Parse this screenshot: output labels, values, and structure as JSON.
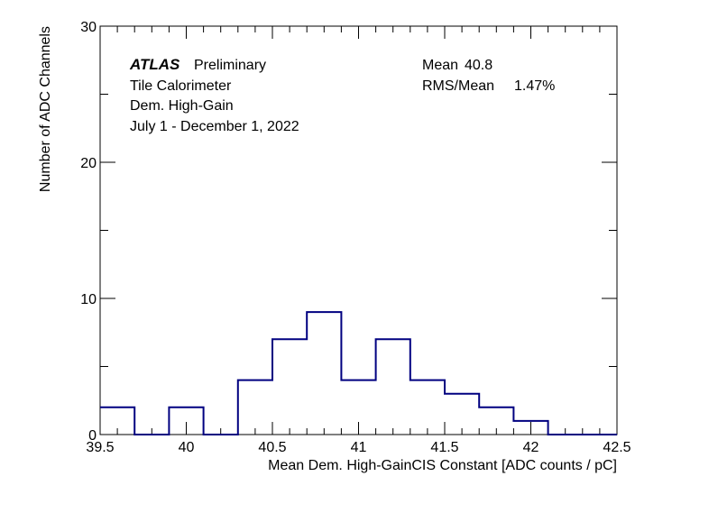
{
  "chart_data": {
    "type": "histogram",
    "xlabel": "Mean Dem. High-GainCIS Constant [ADC counts / pC]",
    "ylabel": "Number of ADC Channels",
    "xlim": [
      39.5,
      42.5
    ],
    "ylim": [
      0,
      30
    ],
    "x_ticks": [
      "39.5",
      "40",
      "40.5",
      "41",
      "41.5",
      "42",
      "42.5"
    ],
    "y_ticks": [
      "0",
      "10",
      "20",
      "30"
    ],
    "bin_edges": [
      39.5,
      39.7,
      39.9,
      40.1,
      40.3,
      40.5,
      40.7,
      40.9,
      41.1,
      41.3,
      41.5,
      41.7,
      41.9,
      42.1,
      42.3,
      42.5
    ],
    "counts": [
      2,
      0,
      2,
      0,
      4,
      7,
      9,
      4,
      7,
      4,
      3,
      2,
      1,
      0,
      0
    ],
    "line_color": "#000080",
    "annotations": {
      "experiment": "ATLAS",
      "status": "Preliminary",
      "line1": "Tile Calorimeter",
      "line2": "Dem. High-Gain",
      "line3": "July 1 - December 1, 2022",
      "mean_label": "Mean",
      "mean_value": "40.8",
      "rms_label": "RMS/Mean",
      "rms_value": "1.47%"
    }
  }
}
